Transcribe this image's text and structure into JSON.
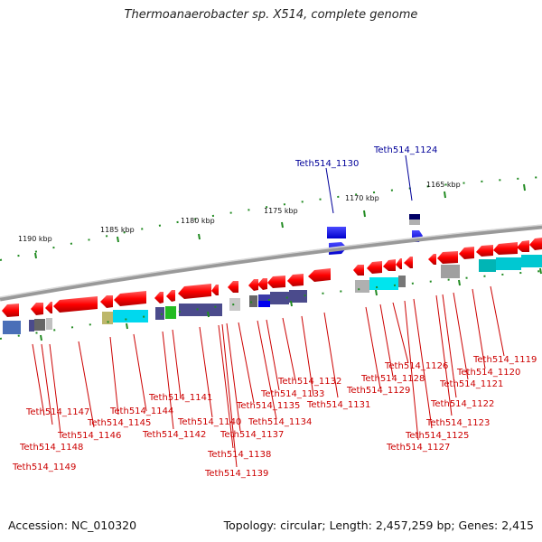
{
  "title": "Thermoanaerobacter sp. X514, complete genome",
  "footer": {
    "accession": "Accession: NC_010320",
    "summary": "Topology: circular; Length: 2,457,259 bp; Genes: 2,415"
  },
  "scale_labels": [
    "1190 kbp",
    "1185 kbp",
    "1180 kbp",
    "1175 kbp",
    "1170 kbp",
    "1165 kbp"
  ],
  "top_genes": [
    "Teth514_1130",
    "Teth514_1124"
  ],
  "bottom_genes": [
    "Teth514_1147",
    "Teth514_1148",
    "Teth514_1149",
    "Teth514_1146",
    "Teth514_1145",
    "Teth514_1144",
    "Teth514_1142",
    "Teth514_1141",
    "Teth514_1140",
    "Teth514_1138",
    "Teth514_1139",
    "Teth514_1137",
    "Teth514_1135",
    "Teth514_1134",
    "Teth514_1133",
    "Teth514_1132",
    "Teth514_1131",
    "Teth514_1129",
    "Teth514_1128",
    "Teth514_1126",
    "Teth514_1127",
    "Teth514_1125",
    "Teth514_1123",
    "Teth514_1122",
    "Teth514_1121",
    "Teth514_1120",
    "Teth514_1119"
  ],
  "colors": {
    "gene_arrow": "#ff0000",
    "gene_arrow_minus_strand": "#0000ee",
    "backbone": "#888888",
    "scale_ticks": "#228b22",
    "label_red": "#cc0000",
    "label_blue": "#000099",
    "cog_lightblue": "#00e5ee",
    "cog_navy": "#4b4b8c",
    "cog_gray": "#a0a0a0",
    "cog_green": "#22bb22",
    "cog_teal": "#00b5b5",
    "cog_khaki": "#bdb76b"
  }
}
